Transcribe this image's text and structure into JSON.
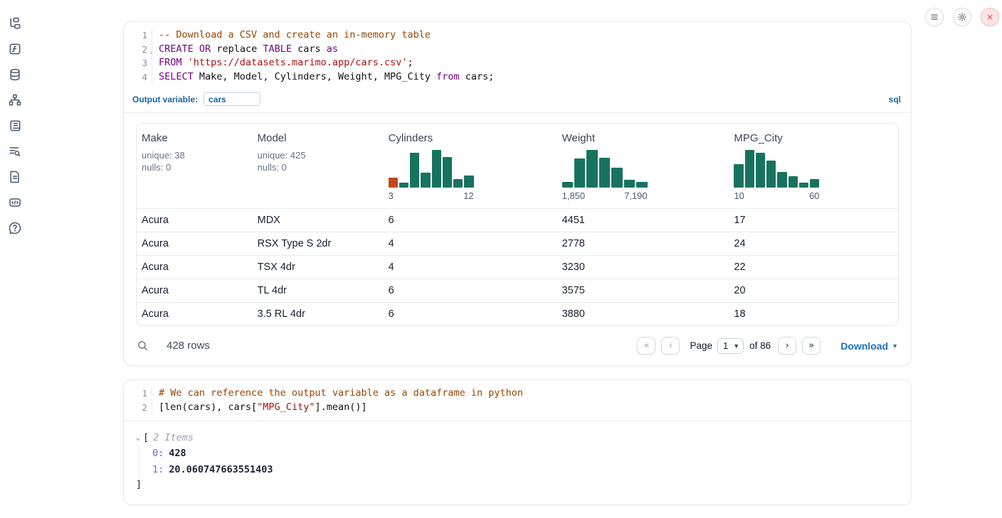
{
  "colors": {
    "accent_blue": "#19689c",
    "download_blue": "#1b6fc0",
    "hist_teal": "#17735f",
    "hist_orange": "#c2491d",
    "keyword": "#770088",
    "comment": "#994400",
    "string": "#aa1111",
    "close_red": "#dc4646"
  },
  "sidebar": {
    "items": [
      {
        "icon": "file-explorer"
      },
      {
        "icon": "variables"
      },
      {
        "icon": "datasources"
      },
      {
        "icon": "dependency-graph"
      },
      {
        "icon": "scratchpad"
      },
      {
        "icon": "logs"
      },
      {
        "icon": "documentation"
      },
      {
        "icon": "snippets"
      },
      {
        "icon": "help"
      }
    ]
  },
  "topbar": {
    "buttons": [
      {
        "icon": "menu"
      },
      {
        "icon": "gear"
      },
      {
        "icon": "close"
      }
    ]
  },
  "cells": [
    {
      "type": "sql",
      "lines": [
        {
          "n": "1",
          "tokens": [
            {
              "t": "-- Download a CSV and create an in-memory table",
              "c": "comment"
            }
          ]
        },
        {
          "n": "2",
          "fold": true,
          "tokens": [
            {
              "t": "CREATE",
              "c": "kw"
            },
            {
              "t": " ",
              "c": ""
            },
            {
              "t": "OR",
              "c": "kw"
            },
            {
              "t": " replace ",
              "c": ""
            },
            {
              "t": "TABLE",
              "c": "kw"
            },
            {
              "t": " cars ",
              "c": ""
            },
            {
              "t": "as",
              "c": "kw"
            }
          ]
        },
        {
          "n": "3",
          "tokens": [
            {
              "t": "FROM",
              "c": "kw"
            },
            {
              "t": " ",
              "c": ""
            },
            {
              "t": "'https://datasets.marimo.app/cars.csv'",
              "c": "str"
            },
            {
              "t": ";",
              "c": ""
            }
          ]
        },
        {
          "n": "4",
          "tokens": [
            {
              "t": "SELECT",
              "c": "kw"
            },
            {
              "t": " Make, Model, Cylinders, Weight, MPG_City ",
              "c": ""
            },
            {
              "t": "from",
              "c": "kw"
            },
            {
              "t": " cars;",
              "c": ""
            }
          ]
        }
      ],
      "output_variable_label": "Output variable:",
      "output_variable_value": "cars",
      "language_badge": "sql",
      "table": {
        "columns": [
          {
            "name": "Make",
            "meta": [
              "unique: 38",
              "nulls: 0"
            ]
          },
          {
            "name": "Model",
            "meta": [
              "unique: 425",
              "nulls: 0"
            ]
          },
          {
            "name": "Cylinders",
            "histogram": {
              "type": "bar",
              "values": [
                0.26,
                0.14,
                0.92,
                0.4,
                1.0,
                0.82,
                0.23,
                0.33
              ],
              "first_bar_highlight": true,
              "min_label": "3",
              "max_label": "12"
            }
          },
          {
            "name": "Weight",
            "histogram": {
              "type": "bar",
              "values": [
                0.16,
                0.78,
                1.0,
                0.8,
                0.53,
                0.2,
                0.16
              ],
              "first_bar_highlight": false,
              "min_label": "1,850",
              "max_label": "7,190"
            }
          },
          {
            "name": "MPG_City",
            "histogram": {
              "type": "bar",
              "values": [
                0.63,
                1.0,
                0.93,
                0.72,
                0.42,
                0.31,
                0.13,
                0.22
              ],
              "first_bar_highlight": false,
              "min_label": "10",
              "max_label": "60"
            }
          }
        ],
        "rows": [
          [
            "Acura",
            "MDX",
            "6",
            "4451",
            "17"
          ],
          [
            "Acura",
            "RSX Type S 2dr",
            "4",
            "2778",
            "24"
          ],
          [
            "Acura",
            "TSX 4dr",
            "4",
            "3230",
            "22"
          ],
          [
            "Acura",
            "TL 4dr",
            "6",
            "3575",
            "20"
          ],
          [
            "Acura",
            "3.5 RL 4dr",
            "6",
            "3880",
            "18"
          ]
        ],
        "footer": {
          "row_count": "428 rows",
          "pagination": {
            "first": "«",
            "prev": "‹",
            "next": "›",
            "last": "»",
            "page_label": "Page",
            "page_value": "1",
            "of_label": "of 86"
          },
          "download_label": "Download"
        }
      }
    },
    {
      "type": "python",
      "lines": [
        {
          "n": "1",
          "tokens": [
            {
              "t": "# We can reference the output variable as a dataframe in python",
              "c": "comment"
            }
          ]
        },
        {
          "n": "2",
          "tokens": [
            {
              "t": "[len(cars), cars[",
              "c": ""
            },
            {
              "t": "\"MPG_City\"",
              "c": "str"
            },
            {
              "t": "].mean()]",
              "c": ""
            }
          ]
        }
      ],
      "output_tree": {
        "chevron": "⌄",
        "open_bracket": "[",
        "count_label": "2 Items",
        "items": [
          {
            "index": "0:",
            "value": "428"
          },
          {
            "index": "1:",
            "value": "20.060747663551403"
          }
        ],
        "close_bracket": "]"
      }
    }
  ]
}
